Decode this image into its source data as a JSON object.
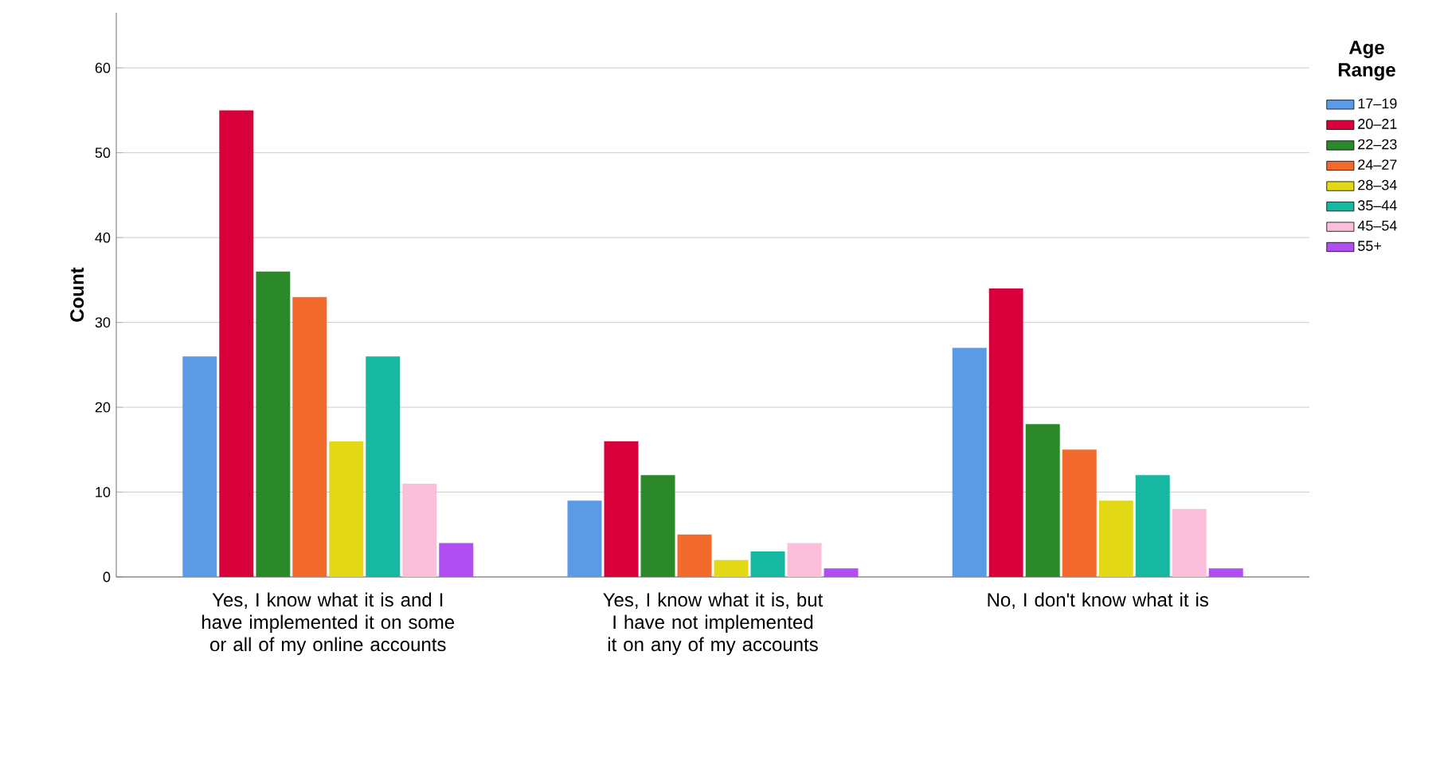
{
  "chart_data": {
    "type": "bar",
    "ylabel": "Count",
    "legend_title": "Age Range",
    "categories": [
      "Yes, I know what it is and I have implemented it on some or all of my online accounts",
      "Yes, I know what it is, but I have not implemented it on any of my accounts",
      "No, I don't know what it is"
    ],
    "series": [
      {
        "name": "17–19",
        "color": "#5b9be6",
        "values": [
          26,
          9,
          27
        ]
      },
      {
        "name": "20–21",
        "color": "#d8003a",
        "values": [
          55,
          16,
          34
        ]
      },
      {
        "name": "22–23",
        "color": "#2a8a2a",
        "values": [
          36,
          12,
          18
        ]
      },
      {
        "name": "24–27",
        "color": "#f26a2c",
        "values": [
          33,
          5,
          15
        ]
      },
      {
        "name": "28–34",
        "color": "#e2d816",
        "values": [
          16,
          2,
          9
        ]
      },
      {
        "name": "35–44",
        "color": "#16b8a2",
        "values": [
          26,
          3,
          12
        ]
      },
      {
        "name": "45–54",
        "color": "#fbbfd9",
        "values": [
          11,
          4,
          8
        ]
      },
      {
        "name": "55+",
        "color": "#b04ef2",
        "values": [
          4,
          1,
          1
        ]
      }
    ],
    "ylim": [
      0,
      66.5
    ],
    "yticks": [
      0,
      10,
      20,
      30,
      40,
      50,
      60
    ],
    "grid": "y",
    "legend": "right"
  }
}
